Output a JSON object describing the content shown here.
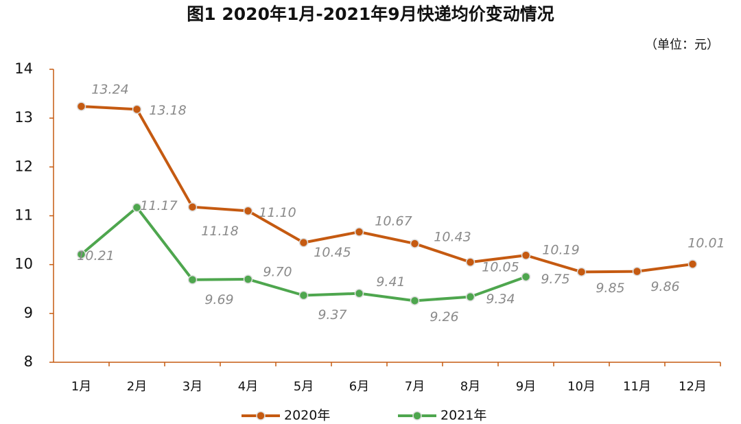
{
  "chart_data": {
    "type": "line",
    "title": "图1 2020年1月-2021年9月快递均价变动情况",
    "unit_label": "（单位：元）",
    "categories": [
      "1月",
      "2月",
      "3月",
      "4月",
      "5月",
      "6月",
      "7月",
      "8月",
      "9月",
      "10月",
      "11月",
      "12月"
    ],
    "series": [
      {
        "name": "2020年",
        "color": "#c55a11",
        "values": [
          13.24,
          13.18,
          11.18,
          11.1,
          10.45,
          10.67,
          10.43,
          10.05,
          10.19,
          9.85,
          9.86,
          10.01
        ],
        "value_labels": [
          "13.24",
          "13.18",
          "11.18",
          "11.10",
          "10.45",
          "10.67",
          "10.43",
          "10.05",
          "10.19",
          "9.85",
          "9.86",
          "10.01"
        ]
      },
      {
        "name": "2021年",
        "color": "#4ea64e",
        "values": [
          10.21,
          11.17,
          9.69,
          9.7,
          9.37,
          9.41,
          9.26,
          9.34,
          9.75,
          null,
          null,
          null
        ],
        "value_labels": [
          "10.21",
          "11.17",
          "9.69",
          "9.70",
          "9.37",
          "9.41",
          "9.26",
          "9.34",
          "9.75",
          null,
          null,
          null
        ]
      }
    ],
    "ylim": [
      8,
      14
    ],
    "yticks": [
      8,
      9,
      10,
      11,
      12,
      13,
      14
    ],
    "grid": false,
    "legend": "bottom"
  }
}
